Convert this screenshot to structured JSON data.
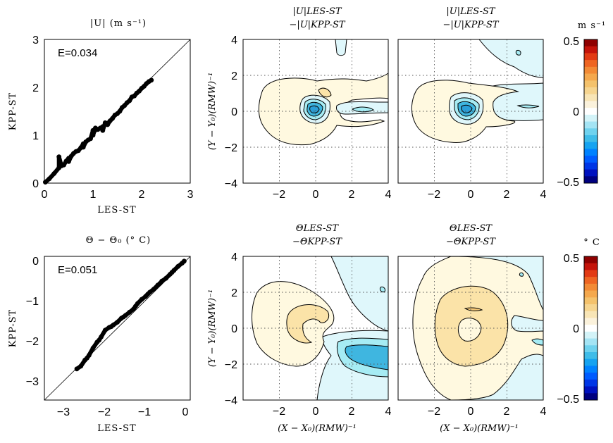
{
  "figure": {
    "row1": {
      "scatter_title": "|U|  (m s⁻¹)",
      "diff_title_a1": "|U|LES-ST",
      "diff_title_a2": "−|U|KPP-ST",
      "diff_title_b1": "|U|LES-ST",
      "diff_title_b2": "−|U|KPP-ST",
      "colorbar_unit": "m s⁻¹"
    },
    "row2": {
      "scatter_title": "Θ − Θ₀  (° C)",
      "diff_title_a1": "ΘLES-ST",
      "diff_title_a2": "−ΘKPP-ST",
      "diff_title_b1": "ΘLES-ST",
      "diff_title_b2": "−ΘKPP-ST",
      "colorbar_unit": "° C"
    },
    "xlabel_contour": "(X − X₀)(RMW)⁻¹",
    "ylabel_contour": "(Y − Y₀)(RMW)⁻¹",
    "colorbar_ticks": [
      "0.5",
      "0",
      "−0.5"
    ]
  },
  "chart_data": [
    {
      "type": "scatter",
      "title": "|U|  (m s⁻¹)",
      "xlabel": "LES-ST",
      "ylabel": "KPP-ST",
      "xlim": [
        0,
        3
      ],
      "ylim": [
        0,
        3
      ],
      "xticks": [
        "0",
        "1",
        "2",
        "3"
      ],
      "yticks": [
        "0",
        "1",
        "2",
        "3"
      ],
      "annotation": "E=0.034",
      "reference_line": "1:1",
      "x": [
        0.02,
        0.1,
        0.2,
        0.3,
        0.4,
        0.5,
        0.6,
        0.7,
        0.8,
        0.9,
        1.0,
        1.05,
        1.1,
        1.2,
        1.3,
        1.4,
        1.5,
        1.6,
        1.7,
        1.8,
        1.9,
        2.0,
        2.1,
        2.2,
        0.35,
        0.45,
        0.55,
        0.65,
        0.75,
        0.85,
        0.95,
        1.15,
        1.25,
        1.35,
        1.45,
        1.55,
        1.65,
        1.75,
        1.85,
        1.95,
        2.05,
        2.15,
        0.3,
        0.5,
        1.0,
        1.2,
        0.8
      ],
      "y": [
        0.02,
        0.09,
        0.2,
        0.32,
        0.38,
        0.52,
        0.62,
        0.68,
        0.82,
        0.9,
        1.1,
        1.15,
        1.12,
        1.18,
        1.22,
        1.35,
        1.45,
        1.58,
        1.68,
        1.8,
        1.88,
        1.98,
        2.08,
        2.15,
        0.36,
        0.46,
        0.56,
        0.66,
        0.74,
        0.86,
        0.93,
        1.15,
        1.26,
        1.3,
        1.42,
        1.5,
        1.62,
        1.72,
        1.82,
        1.92,
        2.02,
        2.12,
        0.55,
        0.45,
        1.0,
        1.1,
        0.75
      ]
    },
    {
      "type": "heatmap",
      "title": "|U|LES-ST −|U|KPP-ST",
      "xlim": [
        -4,
        4
      ],
      "ylim": [
        -4,
        4
      ],
      "xticks": [
        "−2",
        "0",
        "2",
        "4"
      ],
      "yticks": [
        "−4",
        "−2",
        "0",
        "2",
        "4"
      ],
      "ylabel": "(Y − Y₀)(RMW)⁻¹",
      "colorbar_range": [
        -0.5,
        0.5
      ]
    },
    {
      "type": "heatmap",
      "title": "|U|LES-ST −|U|KPP-ST",
      "xlim": [
        -4,
        4
      ],
      "ylim": [
        -4,
        4
      ],
      "xticks": [
        "−2",
        "0",
        "2",
        "4"
      ],
      "yticks": [],
      "colorbar_range": [
        -0.5,
        0.5
      ]
    },
    {
      "type": "scatter",
      "title": "Θ − Θ₀  (° C)",
      "xlabel": "LES-ST",
      "ylabel": "KPP-ST",
      "xlim": [
        -3.5,
        0.1
      ],
      "ylim": [
        -3.5,
        0.1
      ],
      "xticks": [
        "−3",
        "−2",
        "−1",
        "0"
      ],
      "yticks": [
        "−3",
        "−2",
        "−1",
        "0"
      ],
      "annotation": "E=0.051",
      "reference_line": "1:1",
      "x": [
        -2.7,
        -2.6,
        -2.5,
        -2.4,
        -2.3,
        -2.2,
        -2.1,
        -2.0,
        -1.9,
        -1.8,
        -1.7,
        -1.6,
        -1.5,
        -1.4,
        -1.3,
        -1.2,
        -1.1,
        -1.0,
        -0.9,
        -0.8,
        -0.7,
        -0.6,
        -0.5,
        -0.4,
        -0.3,
        -0.2,
        -0.1,
        -0.05,
        -2.45,
        -2.15,
        -1.85,
        -1.55,
        -1.25,
        -0.95,
        -0.65,
        -0.35
      ],
      "y": [
        -2.72,
        -2.65,
        -2.5,
        -2.38,
        -2.2,
        -2.05,
        -1.92,
        -1.75,
        -1.68,
        -1.62,
        -1.55,
        -1.45,
        -1.38,
        -1.3,
        -1.22,
        -1.08,
        -0.98,
        -0.9,
        -0.8,
        -0.72,
        -0.62,
        -0.52,
        -0.45,
        -0.35,
        -0.25,
        -0.15,
        -0.07,
        -0.02,
        -2.45,
        -2.0,
        -1.66,
        -1.42,
        -1.15,
        -0.85,
        -0.58,
        -0.3
      ]
    },
    {
      "type": "heatmap",
      "title": "ΘLES-ST −ΘKPP-ST",
      "xlim": [
        -4,
        4
      ],
      "ylim": [
        -4,
        4
      ],
      "xticks": [
        "−2",
        "0",
        "2",
        "4"
      ],
      "yticks": [
        "−4",
        "−2",
        "0",
        "2",
        "4"
      ],
      "xlabel": "(X − X₀)(RMW)⁻¹",
      "ylabel": "(Y − Y₀)(RMW)⁻¹",
      "colorbar_range": [
        -0.5,
        0.5
      ]
    },
    {
      "type": "heatmap",
      "title": "ΘLES-ST −ΘKPP-ST",
      "xlim": [
        -4,
        4
      ],
      "ylim": [
        -4,
        4
      ],
      "xticks": [
        "−2",
        "0",
        "2",
        "4"
      ],
      "yticks": [],
      "xlabel": "(X − X₀)(RMW)⁻¹",
      "colorbar_range": [
        -0.5,
        0.5
      ]
    }
  ],
  "colors": {
    "light_yellow": "#fff9e0",
    "yellow": "#fbe3a8",
    "orange": "#f5c877",
    "light_cyan": "#dff7fb",
    "cyan": "#a6ecf4",
    "blue": "#3fb6e0",
    "colorbar": [
      "#00007f",
      "#0011bf",
      "#0036e6",
      "#005cff",
      "#0082ff",
      "#16a3f0",
      "#3fbce8",
      "#6fd2ee",
      "#a4e4f4",
      "#d3f3f8",
      "#ffffff",
      "#fbf2dc",
      "#f8e5b6",
      "#f6d590",
      "#f4c26c",
      "#f4a84d",
      "#f28a35",
      "#ee6522",
      "#e23a14",
      "#c4130a",
      "#8e0000"
    ]
  }
}
